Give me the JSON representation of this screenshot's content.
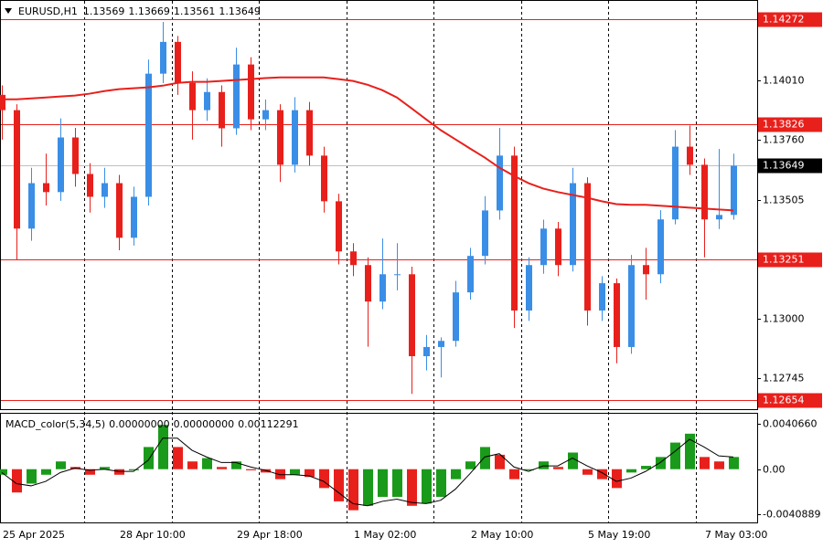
{
  "chart_data": [
    {
      "type": "candlestick",
      "symbol": "EURUSD,H1",
      "last_bar": [
        1.13569,
        1.13669,
        1.13561,
        1.13649
      ],
      "categories": [
        "25 Apr 2025",
        null,
        null,
        null,
        null,
        null,
        null,
        null,
        "28 Apr 10:00",
        null,
        null,
        null,
        null,
        null,
        null,
        null,
        "29 Apr 18:00",
        null,
        null,
        null,
        null,
        null,
        null,
        null,
        "1 May 02:00",
        null,
        null,
        null,
        null,
        null,
        null,
        null,
        "2 May 10:00",
        null,
        null,
        null,
        null,
        null,
        null,
        null,
        "5 May 19:00",
        null,
        null,
        null,
        null,
        null,
        null,
        null,
        "7 May 03:00",
        null,
        null
      ],
      "open": [
        1.1395,
        1.13885,
        1.13382,
        1.13575,
        1.13537,
        1.13769,
        1.13614,
        1.13517,
        1.13575,
        1.13343,
        1.13517,
        1.1404,
        1.14175,
        1.14001,
        1.13885,
        1.13962,
        1.13808,
        1.14079,
        1.13846,
        1.13885,
        1.13653,
        1.13885,
        1.13692,
        1.13498,
        1.13285,
        1.13227,
        1.13072,
        1.13188,
        1.13188,
        1.1284,
        1.12879,
        1.12905,
        1.13111,
        1.13266,
        1.13459,
        1.13692,
        1.13034,
        1.13227,
        1.13382,
        1.13227,
        1.13575,
        1.13034,
        1.1315,
        1.12879,
        1.13227,
        1.13188,
        1.13421,
        1.1373,
        1.13653,
        1.13421,
        1.1344
      ],
      "high": [
        1.1399,
        1.1391,
        1.1364,
        1.137,
        1.1385,
        1.1381,
        1.1366,
        1.1364,
        1.1361,
        1.1356,
        1.141,
        1.1426,
        1.142,
        1.1405,
        1.1402,
        1.1399,
        1.1415,
        1.1411,
        1.1393,
        1.1391,
        1.1394,
        1.1392,
        1.1373,
        1.1353,
        1.1332,
        1.1326,
        1.1334,
        1.1332,
        1.1322,
        1.1293,
        1.1292,
        1.1316,
        1.133,
        1.1352,
        1.1381,
        1.1373,
        1.1326,
        1.1342,
        1.1341,
        1.1364,
        1.136,
        1.1318,
        1.1317,
        1.1327,
        1.133,
        1.1346,
        1.138,
        1.1382,
        1.1368,
        1.1372,
        1.137
      ],
      "low": [
        1.1376,
        1.1325,
        1.1333,
        1.1348,
        1.135,
        1.1356,
        1.1345,
        1.1347,
        1.1329,
        1.1331,
        1.1348,
        1.14,
        1.1395,
        1.1376,
        1.1384,
        1.1373,
        1.1378,
        1.138,
        1.138,
        1.1358,
        1.1362,
        1.1365,
        1.1345,
        1.1323,
        1.1318,
        1.1288,
        1.1304,
        1.1312,
        1.1268,
        1.1278,
        1.1275,
        1.1288,
        1.1308,
        1.1323,
        1.1342,
        1.1296,
        1.1299,
        1.1319,
        1.1318,
        1.132,
        1.1297,
        1.1299,
        1.1281,
        1.1285,
        1.1308,
        1.1315,
        1.134,
        1.1361,
        1.1326,
        1.1338,
        1.1342
      ],
      "close": [
        1.13885,
        1.13382,
        1.13575,
        1.13537,
        1.13769,
        1.13614,
        1.13517,
        1.13575,
        1.13343,
        1.13517,
        1.1404,
        1.14175,
        1.14001,
        1.13885,
        1.13962,
        1.13808,
        1.14079,
        1.13846,
        1.13885,
        1.13653,
        1.13885,
        1.13692,
        1.13498,
        1.13285,
        1.13227,
        1.13072,
        1.13188,
        1.13188,
        1.1284,
        1.12879,
        1.12905,
        1.13111,
        1.13266,
        1.13459,
        1.13692,
        1.13034,
        1.13227,
        1.13382,
        1.13227,
        1.13575,
        1.13034,
        1.1315,
        1.12879,
        1.13227,
        1.13188,
        1.13421,
        1.1373,
        1.13653,
        1.13421,
        1.1344,
        1.13649
      ],
      "up_color": "#3a8ee6",
      "down_color": "#e8201c",
      "ma_values": [
        1.13931,
        1.13931,
        1.13935,
        1.13939,
        1.13943,
        1.13947,
        1.13955,
        1.13966,
        1.13974,
        1.13978,
        1.13982,
        1.13989,
        1.14001,
        1.14005,
        1.14005,
        1.14009,
        1.14013,
        1.14017,
        1.14021,
        1.14024,
        1.14024,
        1.14024,
        1.14024,
        1.14017,
        1.14009,
        1.13993,
        1.1397,
        1.13939,
        1.13893,
        1.13846,
        1.138,
        1.13761,
        1.13722,
        1.13684,
        1.13641,
        1.13606,
        1.13575,
        1.13552,
        1.13537,
        1.13525,
        1.13513,
        1.13498,
        1.13486,
        1.13483,
        1.13483,
        1.13479,
        1.13475,
        1.13471,
        1.13467,
        1.13463,
        1.13459
      ],
      "ma_color": "#e8201c",
      "ylim": [
        1.12615,
        1.14349
      ],
      "yticks": [
        {
          "value": 1.1401,
          "label": "1.14010"
        },
        {
          "value": 1.1376,
          "label": "1.13760"
        },
        1.13505,
        {
          "value": 1.13,
          "label": "1.13000"
        },
        1.12745
      ],
      "levels": [
        1.14272,
        1.13826,
        1.13251,
        1.12654
      ],
      "level_color": "#e8201c",
      "current_price": 1.13649,
      "current_color": "#000000"
    },
    {
      "type": "bar",
      "title": "MACD_color(5,34,5)",
      "indicator_values": [
        {
          "value": 0,
          "label": "0.00000000"
        },
        {
          "value": 0,
          "label": "0.00000000"
        },
        {
          "value": 0.00112291,
          "label": "0.00112291"
        }
      ],
      "values": [
        -0.0005,
        -0.0021,
        -0.0013,
        -0.0005,
        0.0007,
        0.0002,
        -0.0005,
        0.0002,
        -0.0005,
        -0.0001,
        0.002,
        0.004,
        0.002,
        0.0007,
        0.001,
        0.0002,
        0.0007,
        -0.0001,
        -0.0003,
        -0.0009,
        -0.0005,
        -0.0007,
        -0.0017,
        -0.0029,
        -0.0037,
        -0.0033,
        -0.0025,
        -0.0025,
        -0.0033,
        -0.0031,
        -0.0025,
        -0.0009,
        0.0007,
        0.002,
        0.0013,
        -0.0009,
        -0.0001,
        0.0007,
        0.0002,
        0.0015,
        -0.0005,
        -0.0009,
        -0.0017,
        -0.0003,
        0.0003,
        0.0011,
        0.0024,
        0.0032,
        0.0011,
        0.0007,
        0.0011
      ],
      "up_color": "#1a9a1a",
      "down_color": "#e8201c",
      "signal": [
        -0.0003,
        -0.0013,
        -0.0015,
        -0.0011,
        -0.0003,
        0.0001,
        -0.0001,
        0,
        -0.0002,
        -0.0002,
        0.0008,
        0.0028,
        0.0028,
        0.0017,
        0.0011,
        0.0006,
        0.0006,
        0.0002,
        -0.0001,
        -0.0005,
        -0.0005,
        -0.0006,
        -0.0011,
        -0.0021,
        -0.0031,
        -0.0033,
        -0.0029,
        -0.0027,
        -0.003,
        -0.0031,
        -0.0028,
        -0.0018,
        -0.0004,
        0.0011,
        0.0014,
        0.0002,
        -0.0002,
        0.0003,
        0.0003,
        0.001,
        0.0003,
        -0.0003,
        -0.0011,
        -0.0008,
        -0.0002,
        0.0006,
        0.0016,
        0.0027,
        0.002,
        0.0012,
        0.0011
      ],
      "signal_color": "#000000",
      "ylim": [
        -0.0048,
        0.005
      ],
      "yticks": [
        {
          "value": 0.004066,
          "label": "0.0040660"
        },
        {
          "value": 0,
          "label": "0.00"
        },
        {
          "value": -0.0040889,
          "label": "-0.0040889"
        }
      ]
    }
  ]
}
